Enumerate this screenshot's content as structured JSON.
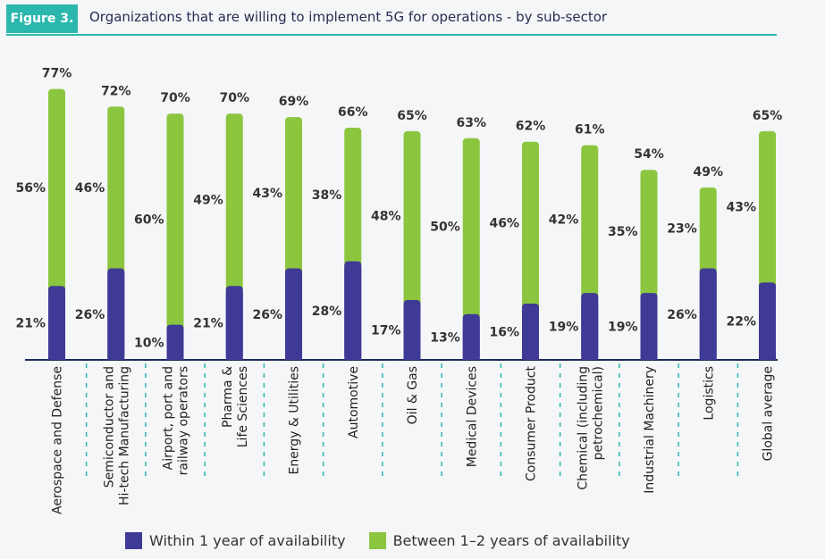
{
  "header": {
    "figure_label": "Figure 3.",
    "title": "Organizations that are willing to implement 5G for operations - by sub-sector"
  },
  "colors": {
    "within_1_year": "#3f3a96",
    "between_1_2_years": "#8cc63f",
    "accent": "#2bb7ae",
    "axis": "#1e2a5a"
  },
  "chart_data": {
    "type": "bar",
    "stacked": true,
    "categories": [
      "Aerospace and Defense",
      "Semiconductor and Hi-tech Manufacturing",
      "Airport, port and railway operators",
      "Pharma & Life Sciences",
      "Energy & Utilities",
      "Automotive",
      "Oil & Gas",
      "Medical Devices",
      "Consumer Product",
      "Chemical (including petrochemical)",
      "Industrial Machinery",
      "Logistics",
      "Global average"
    ],
    "category_label_lines": [
      [
        "Aerospace and Defense"
      ],
      [
        "Semiconductor and",
        "Hi-tech Manufacturing"
      ],
      [
        "Airport, port and",
        "railway operators"
      ],
      [
        "Pharma &",
        "Life Sciences"
      ],
      [
        "Energy & Utilities"
      ],
      [
        "Automotive"
      ],
      [
        "Oil & Gas"
      ],
      [
        "Medical Devices"
      ],
      [
        "Consumer Product"
      ],
      [
        "Chemical (including",
        "petrochemical)"
      ],
      [
        "Industrial Machinery"
      ],
      [
        "Logistics"
      ],
      [
        "Global average"
      ]
    ],
    "series": [
      {
        "name": "Within 1 year of availability",
        "values": [
          21,
          26,
          10,
          21,
          26,
          28,
          17,
          13,
          16,
          19,
          19,
          26,
          22
        ]
      },
      {
        "name": "Between 1–2 years of availability",
        "values": [
          56,
          46,
          60,
          49,
          43,
          38,
          48,
          50,
          46,
          42,
          35,
          23,
          43
        ]
      }
    ],
    "totals": [
      77,
      72,
      70,
      70,
      69,
      66,
      65,
      63,
      62,
      61,
      54,
      49,
      65
    ],
    "value_suffix": "%",
    "legend_position": "bottom",
    "grid": false
  }
}
